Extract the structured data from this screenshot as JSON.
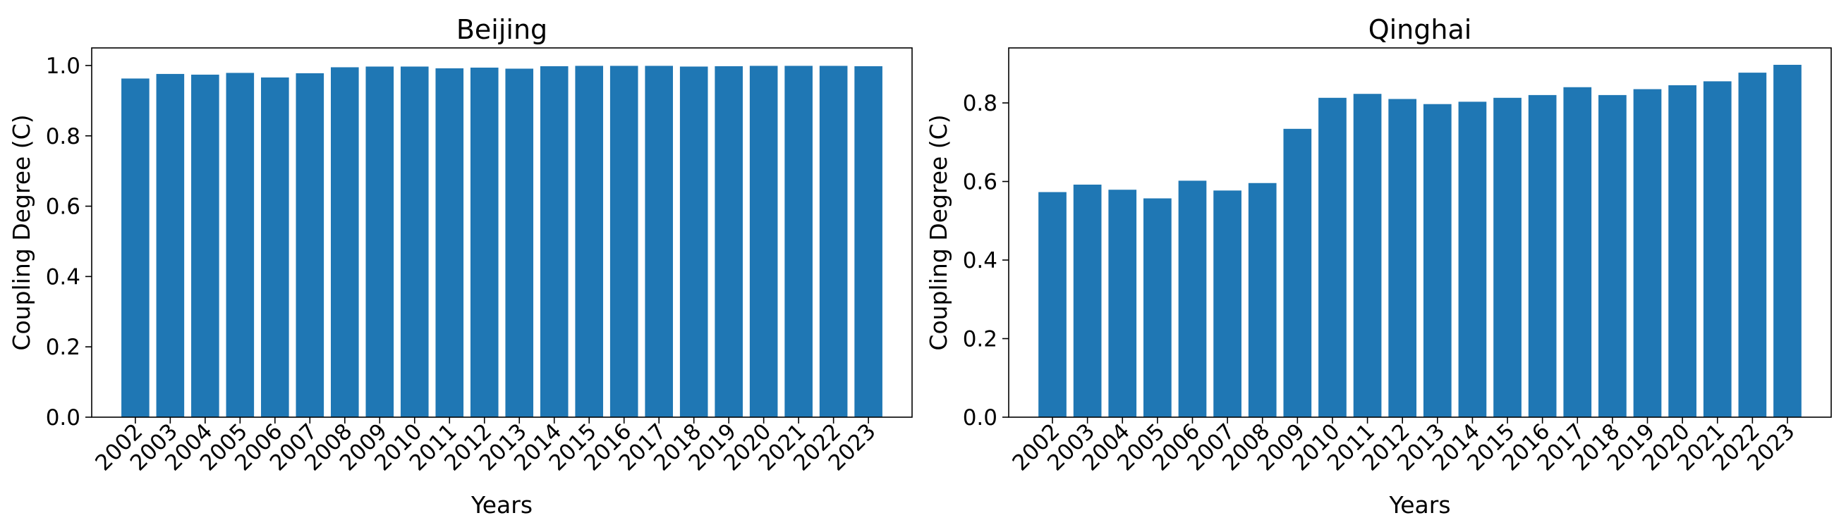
{
  "chart_data": [
    {
      "type": "bar",
      "title": "Beijing",
      "xlabel": "Years",
      "ylabel": "Coupling Degree (C)",
      "categories": [
        "2002",
        "2003",
        "2004",
        "2005",
        "2006",
        "2007",
        "2008",
        "2009",
        "2010",
        "2011",
        "2012",
        "2013",
        "2014",
        "2015",
        "2016",
        "2017",
        "2018",
        "2019",
        "2020",
        "2021",
        "2022",
        "2023"
      ],
      "values": [
        0.963,
        0.976,
        0.974,
        0.979,
        0.966,
        0.978,
        0.995,
        0.997,
        0.997,
        0.992,
        0.994,
        0.991,
        0.998,
        0.999,
        0.999,
        0.999,
        0.997,
        0.998,
        0.999,
        0.999,
        0.999,
        0.998
      ],
      "ylim": [
        0,
        1.05
      ],
      "yticks": [
        0.0,
        0.2,
        0.4,
        0.6,
        0.8,
        1.0
      ],
      "ytick_labels": [
        "0.0",
        "0.2",
        "0.4",
        "0.6",
        "0.8",
        "1.0"
      ],
      "grid": false,
      "color": "#1f77b4"
    },
    {
      "type": "bar",
      "title": "Qinghai",
      "xlabel": "Years",
      "ylabel": "Coupling Degree (C)",
      "categories": [
        "2002",
        "2003",
        "2004",
        "2005",
        "2006",
        "2007",
        "2008",
        "2009",
        "2010",
        "2011",
        "2012",
        "2013",
        "2014",
        "2015",
        "2016",
        "2017",
        "2018",
        "2019",
        "2020",
        "2021",
        "2022",
        "2023"
      ],
      "values": [
        0.573,
        0.592,
        0.579,
        0.557,
        0.602,
        0.577,
        0.596,
        0.734,
        0.813,
        0.823,
        0.81,
        0.797,
        0.803,
        0.813,
        0.82,
        0.84,
        0.82,
        0.835,
        0.845,
        0.855,
        0.877,
        0.897
      ],
      "ylim": [
        0,
        0.94
      ],
      "yticks": [
        0.0,
        0.2,
        0.4,
        0.6,
        0.8
      ],
      "ytick_labels": [
        "0.0",
        "0.2",
        "0.4",
        "0.6",
        "0.8"
      ],
      "grid": false,
      "color": "#1f77b4"
    }
  ]
}
